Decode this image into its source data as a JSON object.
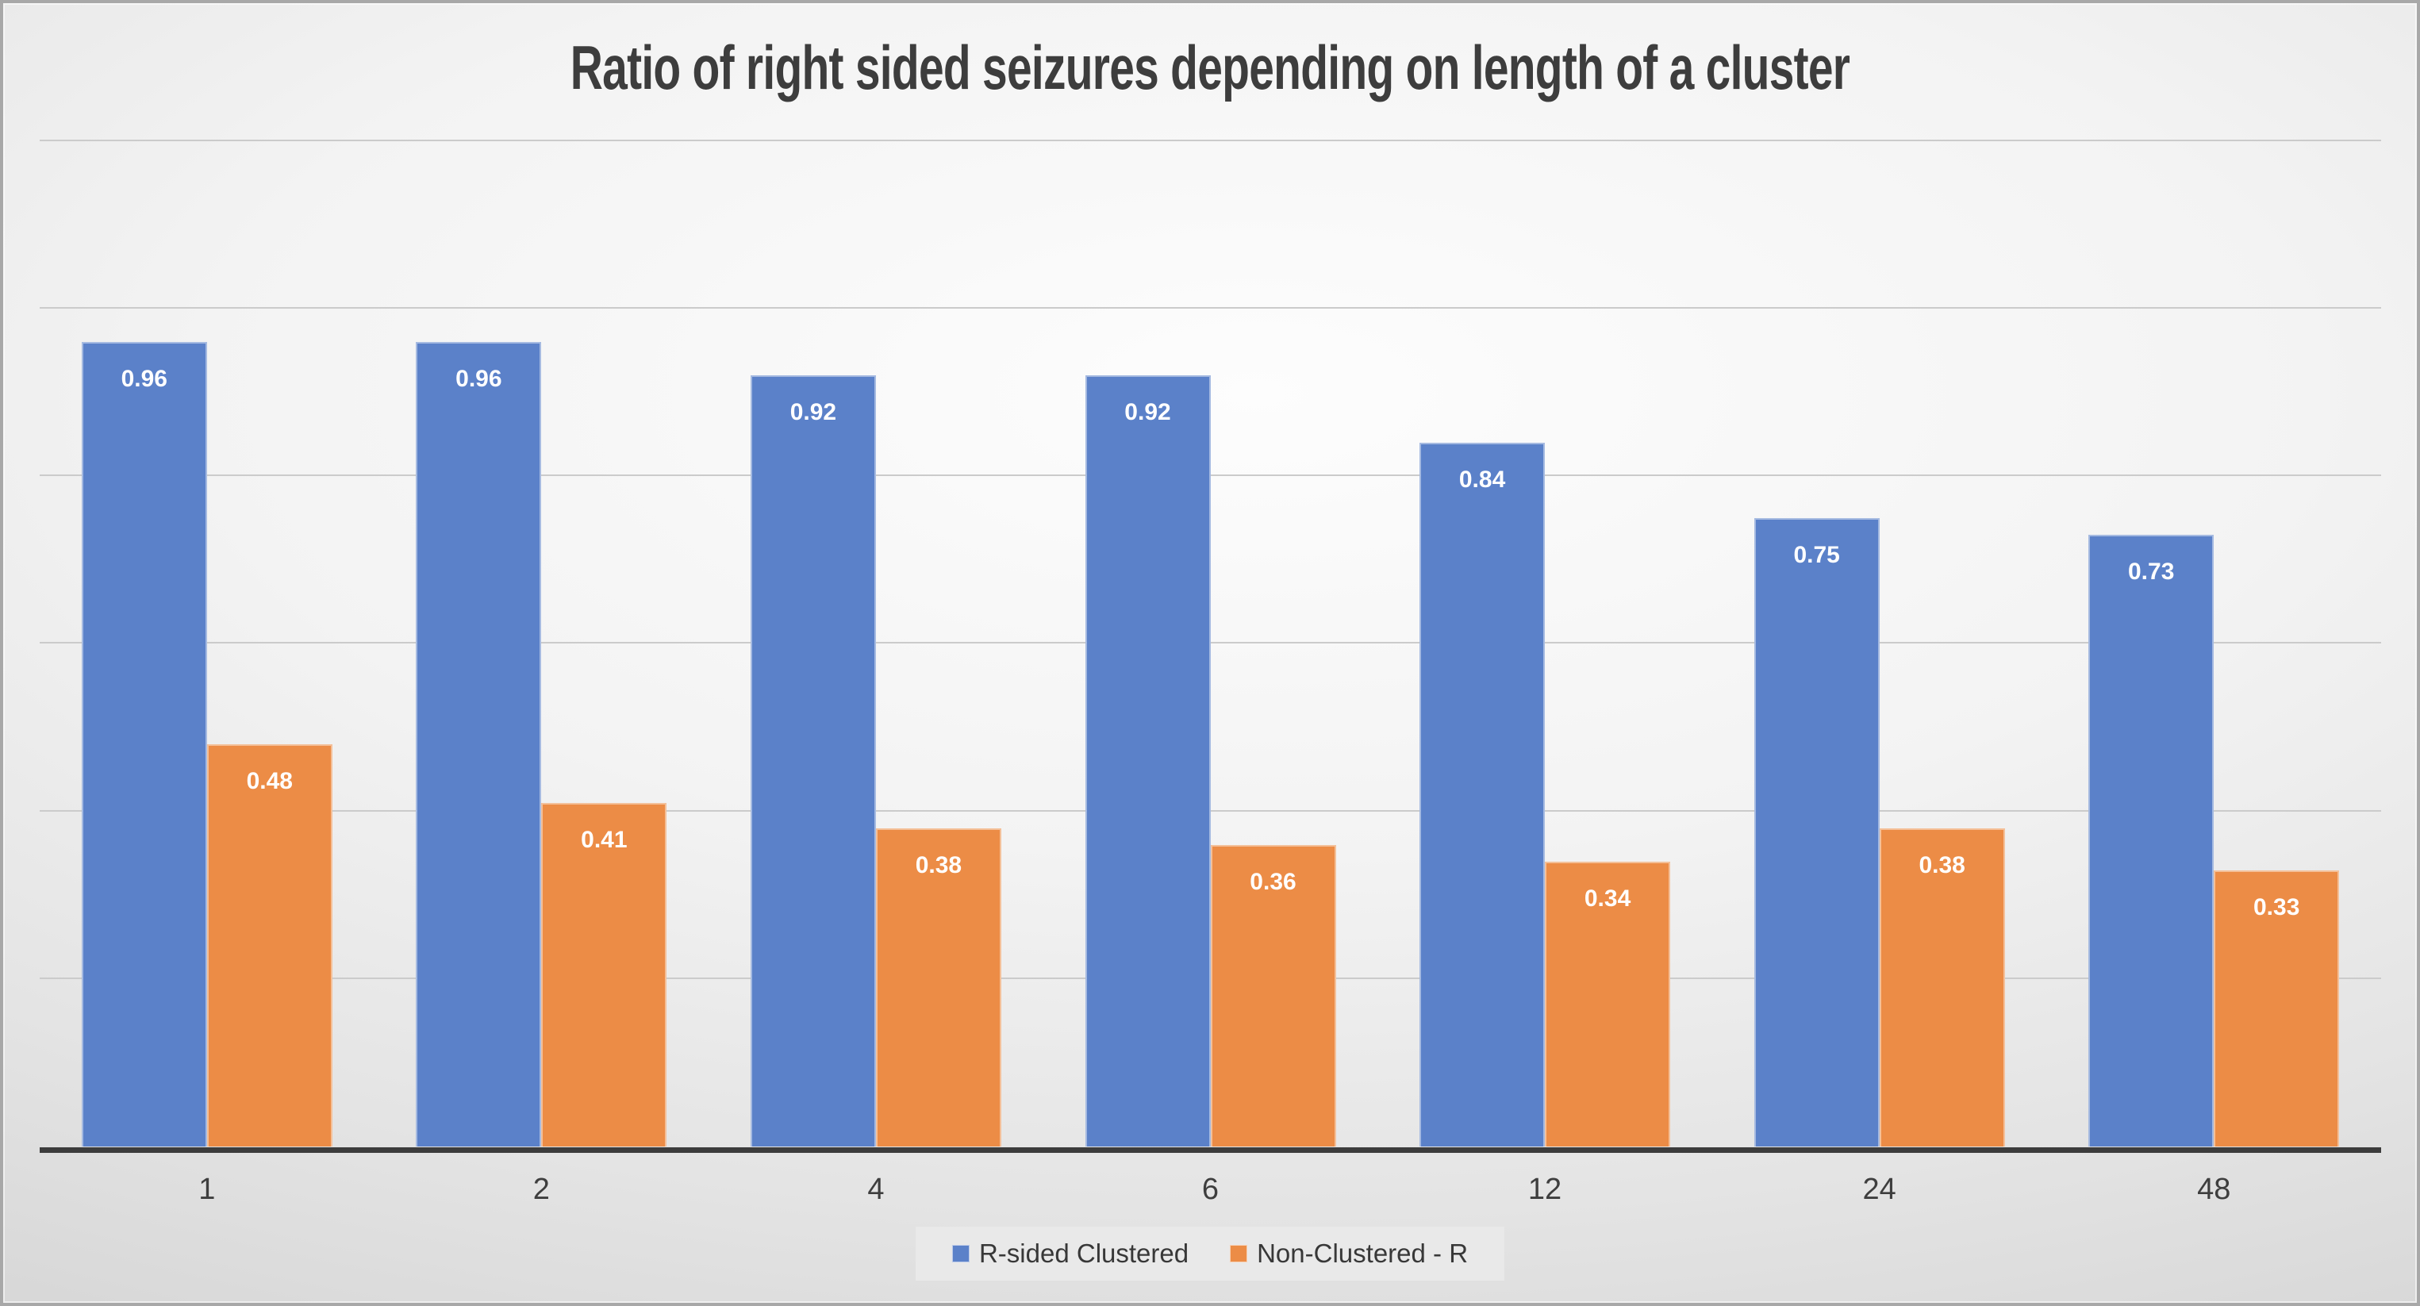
{
  "chart_data": {
    "type": "bar",
    "title": "Ratio of right sided seizures depending on length of a cluster",
    "categories": [
      "1",
      "2",
      "4",
      "6",
      "12",
      "24",
      "48"
    ],
    "series": [
      {
        "name": "R-sided Clustered",
        "color": "#5B81C9",
        "values": [
          0.96,
          0.96,
          0.92,
          0.92,
          0.84,
          0.75,
          0.73
        ]
      },
      {
        "name": "Non-Clustered - R",
        "color": "#EC8C46",
        "values": [
          0.48,
          0.41,
          0.38,
          0.36,
          0.34,
          0.38,
          0.33
        ]
      }
    ],
    "xlabel": "",
    "ylabel": "",
    "ylim": [
      0,
      1.2
    ],
    "y_major_unit": 0.2,
    "y_axis_labels_visible": false,
    "grid": true,
    "legend_position": "bottom",
    "data_labels": "inside-end, 2 decimals, white bold"
  },
  "colors": {
    "title_text": "#3D3D3D",
    "axis_line": "#3C3C3C",
    "gridline": "#CBCBCB",
    "x_label_text": "#3E3E3E",
    "legend_text": "#383838",
    "legend_background": "#E9E9E9",
    "canvas_center": "#FDFDFD",
    "canvas_edge": "#D5D5D5",
    "frame_border": "#A8A8A8"
  }
}
